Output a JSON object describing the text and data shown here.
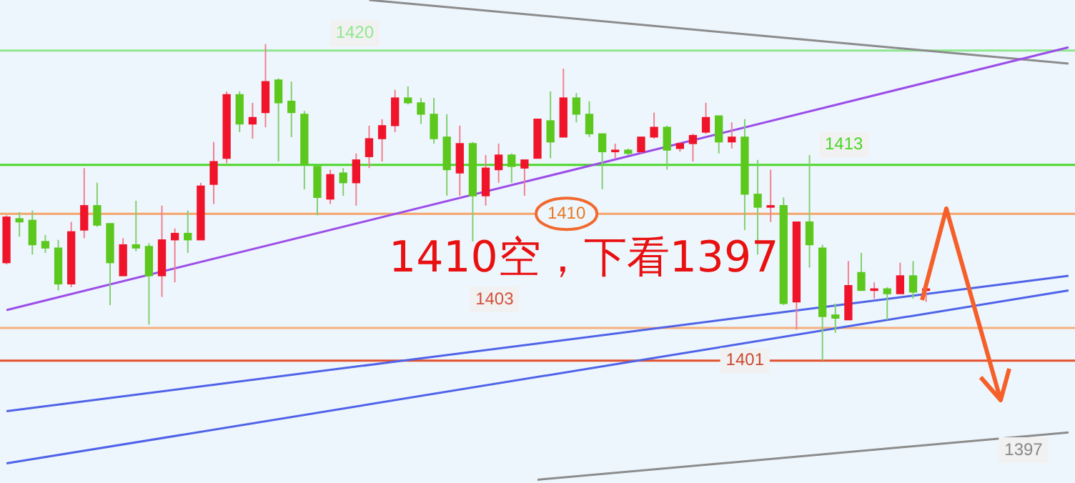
{
  "chart_data": {
    "type": "candlestick",
    "tick_labels": false,
    "ylim": [
      1393.5,
      1423.1
    ],
    "categories": [
      null,
      null,
      null,
      null,
      null,
      null,
      null,
      null,
      null,
      null,
      null,
      null,
      null,
      null,
      null,
      null,
      null,
      null,
      null,
      null,
      null,
      null,
      null,
      null,
      null,
      null,
      null,
      null,
      null,
      null,
      null,
      null,
      null,
      null,
      null,
      null,
      null,
      null,
      null,
      null,
      null,
      null,
      null,
      null,
      null,
      null,
      null,
      null,
      null,
      null,
      null,
      null,
      null,
      null,
      null,
      null,
      null,
      null,
      null,
      null,
      null,
      null,
      null,
      null,
      null,
      null,
      null,
      null,
      null,
      null,
      null,
      null,
      null,
      null,
      null,
      null,
      null,
      null,
      null,
      null,
      null,
      null,
      null
    ],
    "ohlc": [
      [
        1407.0,
        1409.9,
        1406.9,
        1409.8
      ],
      [
        1409.7,
        1410.1,
        1408.6,
        1409.5
      ],
      [
        1409.6,
        1410.2,
        1407.5,
        1408.1
      ],
      [
        1408.3,
        1408.7,
        1407.6,
        1407.9
      ],
      [
        1407.9,
        1408.4,
        1405.3,
        1405.7
      ],
      [
        1405.7,
        1409.5,
        1405.5,
        1408.9
      ],
      [
        1409.0,
        1412.8,
        1408.5,
        1410.5
      ],
      [
        1410.5,
        1411.9,
        1409.2,
        1409.3
      ],
      [
        1409.4,
        1409.4,
        1404.4,
        1407.0
      ],
      [
        1406.2,
        1408.5,
        1406.2,
        1408.1
      ],
      [
        1408.1,
        1410.8,
        1407.7,
        1407.9
      ],
      [
        1408.0,
        1408.2,
        1403.2,
        1406.2
      ],
      [
        1406.2,
        1410.5,
        1404.9,
        1408.4
      ],
      [
        1408.4,
        1409.1,
        1405.8,
        1408.8
      ],
      [
        1408.8,
        1410.2,
        1407.6,
        1408.4
      ],
      [
        1408.4,
        1411.9,
        1408.4,
        1411.7
      ],
      [
        1411.8,
        1414.4,
        1410.6,
        1413.2
      ],
      [
        1413.4,
        1417.5,
        1413.1,
        1417.3
      ],
      [
        1417.3,
        1417.5,
        1415.0,
        1415.5
      ],
      [
        1415.5,
        1416.8,
        1414.6,
        1415.9
      ],
      [
        1416.2,
        1420.4,
        1415.3,
        1418.1
      ],
      [
        1418.2,
        1418.3,
        1413.2,
        1416.8
      ],
      [
        1416.9,
        1418.1,
        1414.7,
        1416.2
      ],
      [
        1416.1,
        1416.3,
        1411.5,
        1413.0
      ],
      [
        1412.9,
        1412.9,
        1409.9,
        1411.0
      ],
      [
        1410.9,
        1412.7,
        1410.6,
        1412.4
      ],
      [
        1412.5,
        1412.8,
        1411.1,
        1411.9
      ],
      [
        1411.9,
        1413.7,
        1410.5,
        1413.3
      ],
      [
        1413.5,
        1415.4,
        1412.8,
        1414.6
      ],
      [
        1414.6,
        1415.8,
        1413.2,
        1415.4
      ],
      [
        1415.4,
        1417.6,
        1415.0,
        1417.1
      ],
      [
        1417.1,
        1417.8,
        1416.7,
        1416.8
      ],
      [
        1416.8,
        1417.1,
        1415.5,
        1416.1
      ],
      [
        1416.1,
        1417.1,
        1414.3,
        1414.6
      ],
      [
        1414.7,
        1416.1,
        1411.1,
        1412.7
      ],
      [
        1412.5,
        1415.4,
        1411.1,
        1414.3
      ],
      [
        1414.3,
        1414.4,
        1408.3,
        1411.1
      ],
      [
        1411.1,
        1413.6,
        1410.5,
        1412.8
      ],
      [
        1412.7,
        1414.3,
        1411.9,
        1413.6
      ],
      [
        1413.6,
        1413.7,
        1411.9,
        1412.9
      ],
      [
        1412.8,
        1413.3,
        1411.1,
        1413.3
      ],
      [
        1413.4,
        1415.8,
        1413.4,
        1415.8
      ],
      [
        1415.7,
        1417.5,
        1413.4,
        1414.4
      ],
      [
        1414.7,
        1418.9,
        1414.7,
        1417.1
      ],
      [
        1417.1,
        1417.4,
        1415.6,
        1416.1
      ],
      [
        1416.1,
        1416.9,
        1414.7,
        1414.9
      ],
      [
        1414.9,
        1414.9,
        1411.5,
        1413.8
      ],
      [
        1413.8,
        1414.3,
        1413.4,
        1413.9
      ],
      [
        1413.9,
        1414.0,
        1413.6,
        1413.7
      ],
      [
        1413.8,
        1414.7,
        1413.7,
        1414.7
      ],
      [
        1414.7,
        1416.2,
        1414.6,
        1415.3
      ],
      [
        1415.3,
        1415.4,
        1412.7,
        1413.9
      ],
      [
        1414.0,
        1414.4,
        1413.8,
        1414.3
      ],
      [
        1414.3,
        1414.9,
        1413.2,
        1414.8
      ],
      [
        1415.0,
        1416.8,
        1414.9,
        1415.9
      ],
      [
        1416.0,
        1416.0,
        1413.7,
        1414.4
      ],
      [
        1414.4,
        1415.6,
        1414.0,
        1414.7
      ],
      [
        1414.7,
        1415.8,
        1409.0,
        1411.2
      ],
      [
        1411.2,
        1413.3,
        1407.5,
        1410.4
      ],
      [
        1410.4,
        1412.7,
        1409.5,
        1410.5
      ],
      [
        1410.5,
        1411.0,
        1404.4,
        1404.5
      ],
      [
        1404.6,
        1409.5,
        1402.9,
        1409.5
      ],
      [
        1409.5,
        1413.6,
        1406.7,
        1408.1
      ],
      [
        1407.9,
        1408.1,
        1401.0,
        1403.7
      ],
      [
        1403.8,
        1404.5,
        1402.7,
        1403.6
      ],
      [
        1403.5,
        1407.1,
        1403.5,
        1405.6
      ],
      [
        1406.4,
        1407.6,
        1405.3,
        1405.3
      ],
      [
        1405.3,
        1405.8,
        1404.8,
        1405.4
      ],
      [
        1405.4,
        1405.5,
        1403.5,
        1405.1
      ],
      [
        1405.1,
        1407.0,
        1405.1,
        1406.2
      ],
      [
        1406.2,
        1407.1,
        1404.8,
        1405.2
      ],
      [
        1405.3,
        1405.5,
        1404.6,
        1405.4
      ],
      null,
      null,
      null,
      null,
      null,
      null,
      null,
      null,
      null,
      null,
      null
    ],
    "series": [
      {
        "type": "line",
        "color": "#9b4de8",
        "values": [
          1404.1,
          null,
          null,
          null,
          null,
          null,
          null,
          null,
          null,
          null,
          null,
          null,
          null,
          null,
          null,
          null,
          null,
          null,
          null,
          null,
          null,
          null,
          null,
          null,
          null,
          null,
          null,
          null,
          null,
          null,
          null,
          null,
          null,
          null,
          null,
          null,
          null,
          null,
          null,
          null,
          null,
          null,
          null,
          null,
          null,
          null,
          null,
          null,
          null,
          null,
          null,
          null,
          null,
          null,
          null,
          null,
          null,
          null,
          null,
          null,
          null,
          null,
          null,
          null,
          null,
          null,
          null,
          null,
          null,
          null,
          null,
          null,
          null,
          null,
          null,
          null,
          null,
          null,
          null,
          null,
          null,
          null,
          1420.2
        ]
      },
      {
        "type": "line",
        "color": "#4f63e8",
        "values": [
          1397.9,
          null,
          null,
          null,
          null,
          null,
          null,
          null,
          null,
          null,
          null,
          null,
          null,
          null,
          null,
          null,
          null,
          null,
          null,
          null,
          null,
          null,
          null,
          null,
          null,
          null,
          null,
          null,
          null,
          null,
          null,
          null,
          null,
          null,
          null,
          null,
          null,
          null,
          null,
          null,
          null,
          null,
          null,
          null,
          null,
          null,
          null,
          null,
          null,
          null,
          null,
          null,
          null,
          null,
          null,
          null,
          null,
          null,
          null,
          null,
          null,
          null,
          null,
          null,
          null,
          null,
          null,
          null,
          null,
          null,
          null,
          null,
          null,
          null,
          null,
          null,
          null,
          null,
          null,
          null,
          null,
          null,
          1406.2
        ]
      },
      {
        "type": "line",
        "color": "#4f63e8",
        "values": [
          1394.7,
          null,
          null,
          null,
          null,
          null,
          null,
          null,
          null,
          null,
          null,
          null,
          null,
          null,
          null,
          null,
          null,
          null,
          null,
          null,
          null,
          null,
          null,
          null,
          null,
          null,
          null,
          null,
          null,
          null,
          null,
          null,
          null,
          null,
          null,
          null,
          null,
          null,
          null,
          null,
          null,
          null,
          null,
          null,
          null,
          null,
          null,
          null,
          null,
          null,
          null,
          null,
          null,
          null,
          null,
          null,
          null,
          null,
          null,
          null,
          null,
          null,
          null,
          null,
          null,
          null,
          null,
          null,
          null,
          null,
          null,
          null,
          null,
          null,
          null,
          null,
          null,
          null,
          null,
          null,
          null,
          null,
          1405.3
        ]
      },
      {
        "type": "line",
        "color": "#8c8c8c",
        "values": [
          null,
          null,
          null,
          null,
          null,
          null,
          null,
          null,
          null,
          null,
          null,
          null,
          null,
          null,
          null,
          null,
          null,
          null,
          null,
          null,
          null,
          null,
          null,
          null,
          null,
          null,
          null,
          null,
          1423.1,
          null,
          null,
          null,
          null,
          null,
          null,
          null,
          null,
          null,
          null,
          null,
          null,
          null,
          null,
          null,
          null,
          null,
          null,
          null,
          null,
          null,
          null,
          null,
          null,
          null,
          null,
          null,
          null,
          null,
          null,
          null,
          null,
          null,
          null,
          null,
          null,
          null,
          null,
          null,
          null,
          null,
          null,
          null,
          null,
          null,
          null,
          null,
          null,
          null,
          null,
          null,
          null,
          null,
          1419.2
        ]
      },
      {
        "type": "line",
        "color": "#8c8c8c",
        "values": [
          null,
          null,
          null,
          null,
          null,
          null,
          null,
          null,
          null,
          null,
          null,
          null,
          null,
          null,
          null,
          null,
          null,
          null,
          null,
          null,
          null,
          null,
          null,
          null,
          null,
          null,
          null,
          null,
          null,
          null,
          null,
          null,
          null,
          null,
          null,
          null,
          null,
          null,
          null,
          null,
          null,
          1393.7,
          null,
          null,
          null,
          null,
          null,
          null,
          null,
          null,
          null,
          null,
          null,
          null,
          null,
          null,
          null,
          null,
          null,
          null,
          null,
          null,
          null,
          null,
          null,
          null,
          null,
          null,
          null,
          null,
          null,
          null,
          null,
          null,
          null,
          null,
          null,
          null,
          null,
          null,
          null,
          null,
          1396.6
        ]
      }
    ],
    "ref_lines": [
      {
        "axis": "y",
        "value": 1420,
        "label": "1420",
        "color": "#8fe88f"
      },
      {
        "axis": "y",
        "value": 1413,
        "label": "1413",
        "color": "#4cd62a"
      },
      {
        "axis": "y",
        "value": 1410,
        "label": "1410",
        "color": "#f5a46a"
      },
      {
        "axis": "y",
        "value": 1403,
        "label": "1403",
        "color": "#f5b07c"
      },
      {
        "axis": "y",
        "value": 1401,
        "label": "1401",
        "color": "#e2502c"
      }
    ],
    "annotations": [
      "1410空，下看1397",
      "1397"
    ]
  }
}
